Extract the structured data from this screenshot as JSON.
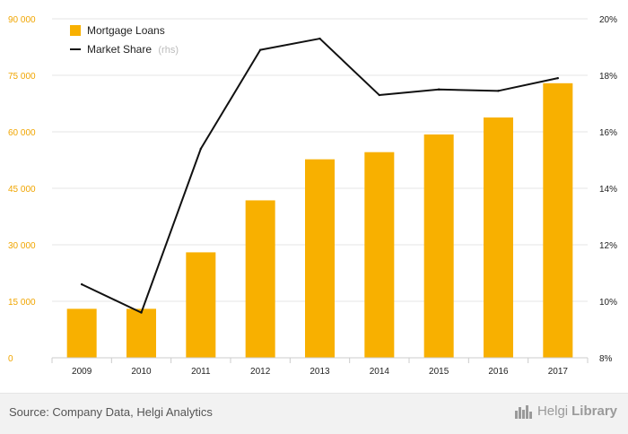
{
  "chart_data": {
    "type": "bar",
    "categories": [
      "2009",
      "2010",
      "2011",
      "2012",
      "2013",
      "2014",
      "2015",
      "2016",
      "2017"
    ],
    "series": [
      {
        "name": "Mortgage Loans",
        "type": "bar",
        "axis": "left",
        "values": [
          13000,
          13000,
          28000,
          41800,
          52700,
          54600,
          59300,
          63800,
          72900
        ]
      },
      {
        "name": "Market Share",
        "legend_note": "(rhs)",
        "type": "line",
        "axis": "right",
        "values": [
          10.6,
          9.6,
          15.4,
          18.9,
          19.3,
          17.3,
          17.5,
          17.45,
          17.9
        ]
      }
    ],
    "y_left": {
      "min": 0,
      "max": 90000,
      "ticks": [
        "0",
        "15 000",
        "30 000",
        "45 000",
        "60 000",
        "75 000",
        "90 000"
      ]
    },
    "y_right": {
      "min": 8,
      "max": 20,
      "ticks": [
        "8%",
        "10%",
        "12%",
        "14%",
        "16%",
        "18%",
        "20%"
      ]
    },
    "grid": true,
    "legend_position": "top-left",
    "colors": {
      "bar": "#f8b000",
      "line": "#111111",
      "left_axis_text": "#f0a500",
      "grid": "#e5e5e5"
    }
  },
  "footer": {
    "source": "Source: Company Data, Helgi Analytics",
    "brand_light": "Helgi",
    "brand_bold": "Library",
    "brand_icon": "city-skyline-icon"
  }
}
